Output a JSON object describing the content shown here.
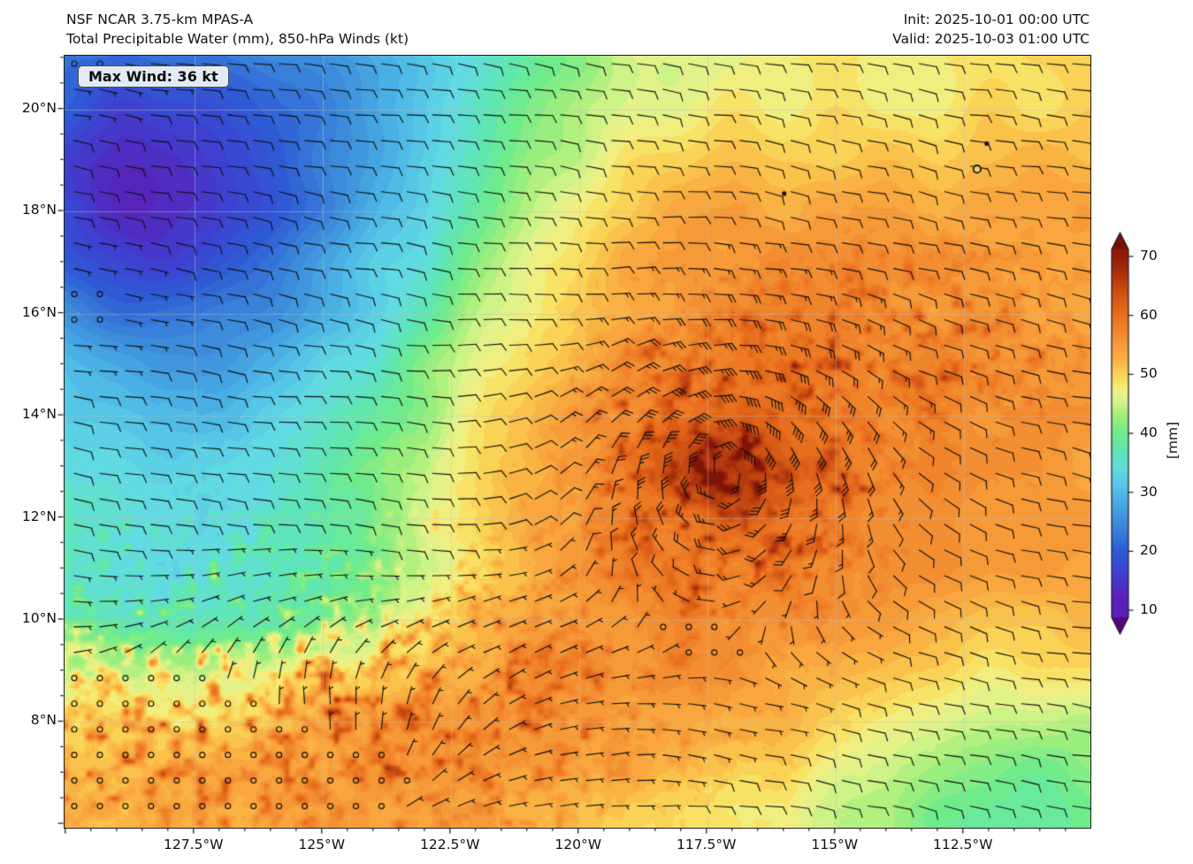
{
  "header": {
    "model": "NSF NCAR 3.75-km MPAS-A",
    "product": "Total Precipitable Water (mm), 850-hPa Winds (kt)",
    "init": "Init: 2025-10-01 00:00 UTC",
    "valid": "Valid: 2025-10-03 01:00 UTC"
  },
  "map": {
    "max_wind_label": "Max Wind: 36 kt"
  },
  "chart_data": {
    "type": "heatmap",
    "title": "Total Precipitable Water (mm), 850-hPa Winds (kt)",
    "model": "NSF NCAR 3.75-km MPAS-A",
    "init_time": "2025-10-01 00:00 UTC",
    "valid_time": "2025-10-03 01:00 UTC",
    "max_wind_kt": 36,
    "projection": "plate-carree",
    "grid": true,
    "xlim": [
      -130.03,
      -110.03
    ],
    "ylim": [
      5.93,
      21.05
    ],
    "x_ticks": [
      {
        "value": -127.5,
        "label": "127.5°W"
      },
      {
        "value": -125.0,
        "label": "125°W"
      },
      {
        "value": -122.5,
        "label": "122.5°W"
      },
      {
        "value": -120.0,
        "label": "120°W"
      },
      {
        "value": -117.5,
        "label": "117.5°W"
      },
      {
        "value": -115.0,
        "label": "115°W"
      },
      {
        "value": -112.5,
        "label": "112.5°W"
      }
    ],
    "y_ticks": [
      {
        "value": 20,
        "label": "20°N"
      },
      {
        "value": 18,
        "label": "18°N"
      },
      {
        "value": 16,
        "label": "16°N"
      },
      {
        "value": 14,
        "label": "14°N"
      },
      {
        "value": 12,
        "label": "12°N"
      },
      {
        "value": 10,
        "label": "10°N"
      },
      {
        "value": 8,
        "label": "8°N"
      }
    ],
    "minor_tick_deg": 0.5,
    "colorbar": {
      "label": "[mm]",
      "ticks": [
        10,
        20,
        30,
        40,
        50,
        60,
        70
      ],
      "extend": "both",
      "stops": [
        [
          8,
          "#53077e"
        ],
        [
          12,
          "#5a21b8"
        ],
        [
          16,
          "#3f3fd0"
        ],
        [
          20,
          "#2f5ad6"
        ],
        [
          24,
          "#3a82da"
        ],
        [
          28,
          "#47a8e2"
        ],
        [
          31,
          "#55c4e8"
        ],
        [
          34,
          "#63dce0"
        ],
        [
          37,
          "#5ee6b4"
        ],
        [
          40,
          "#70eb8b"
        ],
        [
          43,
          "#a2ef7c"
        ],
        [
          45,
          "#cdf285"
        ],
        [
          47,
          "#eef28c"
        ],
        [
          48.5,
          "#f7e569"
        ],
        [
          50.5,
          "#fbcb50"
        ],
        [
          53,
          "#f9ad40"
        ],
        [
          56,
          "#f49134"
        ],
        [
          58.5,
          "#ee7b25"
        ],
        [
          61,
          "#e2671a"
        ],
        [
          64,
          "#cd4f12"
        ],
        [
          67,
          "#ad330c"
        ],
        [
          70,
          "#8d1b08"
        ],
        [
          72,
          "#7a0f06"
        ]
      ]
    },
    "cyclone_center": {
      "lon": -117.1,
      "lat": 13.0
    },
    "tpw_field": {
      "units": "mm",
      "base": 53,
      "contour_step": 1.25,
      "blobs": [
        {
          "name": "nw-dry-airmass",
          "lon": -129.2,
          "lat": 19.7,
          "slon": 3.97,
          "slat": 3.29,
          "amp": -26
        },
        {
          "name": "nw-dry-core",
          "lon": -128.4,
          "lat": 18.1,
          "slon": 1.55,
          "slat": 1.38,
          "amp": -6
        },
        {
          "name": "west-dry-column",
          "lon": -129.6,
          "lat": 13.8,
          "slon": 2.59,
          "slat": 4.5,
          "amp": -13
        },
        {
          "name": "north-green-wedge",
          "lon": -123.9,
          "lat": 19.2,
          "slon": 2.76,
          "slat": 3.98,
          "amp": -13
        },
        {
          "name": "midwest-green",
          "lon": -125.6,
          "lat": 12.4,
          "slon": 2.41,
          "slat": 3.11,
          "amp": -11
        },
        {
          "name": "west-green-band",
          "lon": -127.3,
          "lat": 10.3,
          "slon": 3.79,
          "slat": 1.04,
          "amp": -8
        },
        {
          "name": "se-green-corner",
          "lon": -110.6,
          "lat": 6.0,
          "slon": 3.45,
          "slat": 2.25,
          "amp": -11
        },
        {
          "name": "se-green-2",
          "lon": -112.3,
          "lat": 6.7,
          "slon": 2.59,
          "slat": 1.73,
          "amp": -4
        },
        {
          "name": "north-yellow-band",
          "lon": -115.9,
          "lat": 20.8,
          "slon": 6.2,
          "slat": 1.38,
          "amp": -6
        },
        {
          "name": "cyclone-moist-envelope",
          "lon": -117.2,
          "lat": 13.1,
          "slon": 4.83,
          "slat": 3.63,
          "amp": 5
        },
        {
          "name": "cyclone-core",
          "lon": -117.1,
          "lat": 13.0,
          "slon": 0.95,
          "slat": 0.73,
          "amp": 9
        },
        {
          "name": "sw-itcz-moist",
          "lon": -126.4,
          "lat": 8.3,
          "slon": 4.48,
          "slat": 2.25,
          "amp": 4
        },
        {
          "name": "south-edge-strip",
          "lon": -118.5,
          "lat": 5.9,
          "slon": 2.5,
          "slat": 0.7,
          "amp": -5
        }
      ],
      "speckle_zones": [
        {
          "type": "gauss",
          "name": "itcz-convection",
          "lon": -125.9,
          "lat": 8.4,
          "slon": 4.8,
          "slat": 2.2,
          "w": 0.9
        },
        {
          "type": "ring",
          "name": "cyclone-rainbands",
          "r0": 2.0,
          "sr": 1.0,
          "w": 0.55
        },
        {
          "type": "gauss",
          "name": "ne-spiral-arm",
          "lon": -114.0,
          "lat": 15.4,
          "slon": 3.1,
          "slat": 1.2,
          "w": 0.55
        },
        {
          "type": "gauss",
          "name": "eyewall",
          "lon": -117.1,
          "lat": 13.0,
          "slon": 0.9,
          "slat": 0.7,
          "w": 1.0
        }
      ]
    },
    "wind_field": {
      "units": "kt",
      "background": {
        "u": -9,
        "v": 1.5
      },
      "vortex": {
        "lon": -117.1,
        "lat": 13.0,
        "vmax_kt": 36,
        "rmax_deg": 0.9
      },
      "zones": [
        {
          "name": "sw-northerly",
          "lon": -125.7,
          "lat": 8.0,
          "slon": 3.8,
          "slat": 1.8,
          "du": 9,
          "dv": -7
        },
        {
          "name": "sw-calm",
          "lon": -127.0,
          "lat": 6.9,
          "slon": 3.5,
          "slat": 1.3,
          "speed_scale": 0.25
        },
        {
          "name": "swcorner-calm",
          "lon": -129.5,
          "lat": 7.2,
          "slon": 2.2,
          "slat": 1.6,
          "speed_scale": 0.15
        },
        {
          "name": "west-calm",
          "lon": -129.5,
          "lat": 16.1,
          "slon": 1.0,
          "slat": 0.9,
          "speed_scale": 0.15
        },
        {
          "name": "nw-calm",
          "lon": -129.6,
          "lat": 20.9,
          "slon": 1.2,
          "slat": 0.7,
          "speed_scale": 0.15
        }
      ]
    },
    "islands": [
      {
        "lon": -116.0,
        "lat": 18.35,
        "style": "dot"
      },
      {
        "lon": -112.05,
        "lat": 19.33,
        "style": "dot"
      },
      {
        "lon": -112.24,
        "lat": 18.83,
        "style": "ring"
      }
    ]
  }
}
